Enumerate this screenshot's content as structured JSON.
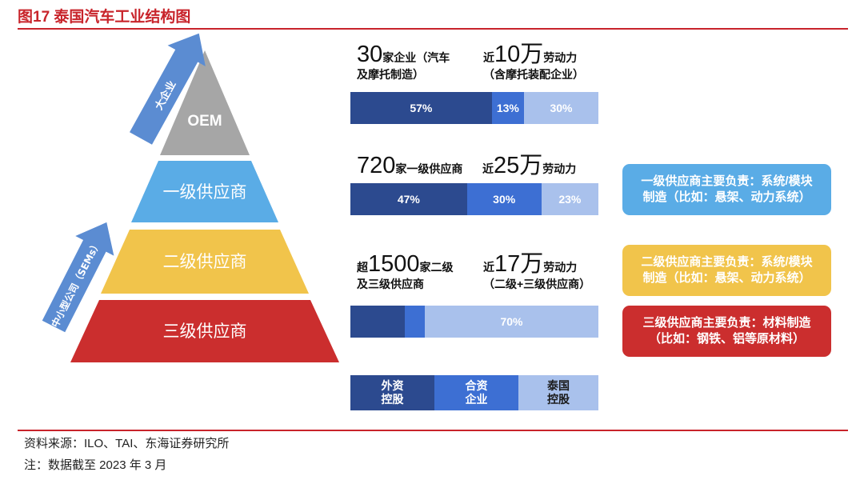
{
  "figure": {
    "title": "图17  泰国汽车工业结构图"
  },
  "colors": {
    "accent_red": "#c8242b",
    "foreign": "#2c4a8f",
    "joint": "#3d6fd3",
    "thai": "#a9c1ec",
    "tier_oem": "#a6a6a6",
    "tier1": "#5aace6",
    "tier2": "#f1c44b",
    "tier3": "#cb2e2e",
    "arrow": "#5b8cd2"
  },
  "pyramid": {
    "tiers": [
      {
        "label": "OEM"
      },
      {
        "label": "一级供应商"
      },
      {
        "label": "二级供应商"
      },
      {
        "label": "三级供应商"
      }
    ]
  },
  "arrows": {
    "large": "大企业",
    "small": "中小型公司（SEMs）"
  },
  "stats": [
    {
      "count_num": "30",
      "count_text": "家企业（汽车",
      "count_text2": "及摩托制造）",
      "labor_prefix": "近",
      "labor_num": "10万",
      "labor_text": "劳动力",
      "labor_text2": "（含摩托装配企业）"
    },
    {
      "count_num": "720",
      "count_text": "家一级供应商",
      "count_text2": "",
      "labor_prefix": "近",
      "labor_num": "25万",
      "labor_text": "劳动力",
      "labor_text2": ""
    },
    {
      "count_prefix": "超",
      "count_num": "1500",
      "count_text": "家二级",
      "count_text2": "及三级供应商",
      "labor_prefix": "近",
      "labor_num": "17万",
      "labor_text": "劳动力",
      "labor_text2": "（二级+三级供应商）"
    }
  ],
  "chart_data": {
    "type": "bar",
    "orientation": "horizontal-stacked-100",
    "categories": [
      "OEM",
      "一级供应商",
      "二级及三级供应商"
    ],
    "series": [
      {
        "name": "外资控股",
        "values": [
          57,
          47,
          22
        ]
      },
      {
        "name": "合资企业",
        "values": [
          13,
          30,
          8
        ]
      },
      {
        "name": "泰国控股",
        "values": [
          30,
          23,
          70
        ]
      }
    ],
    "labels": [
      [
        "57%",
        "13%",
        "30%"
      ],
      [
        "47%",
        "30%",
        "23%"
      ],
      [
        "",
        "",
        "70%"
      ]
    ]
  },
  "legend": [
    {
      "line1": "外资",
      "line2": "控股"
    },
    {
      "line1": "合资",
      "line2": "企业"
    },
    {
      "line1": "泰国",
      "line2": "控股"
    }
  ],
  "callouts": [
    {
      "line1": "一级供应商主要负责：系统/模块",
      "line2": "制造（比如：悬架、动力系统）"
    },
    {
      "line1": "二级供应商主要负责：系统/模块",
      "line2": "制造（比如：悬架、动力系统）"
    },
    {
      "line1": "三级供应商主要负责：材料制造",
      "line2": "（比如：钢铁、铝等原材料）"
    }
  ],
  "footer": {
    "source": "资料来源：ILO、TAI、东海证券研究所",
    "note": "注：数据截至 2023 年 3 月"
  }
}
